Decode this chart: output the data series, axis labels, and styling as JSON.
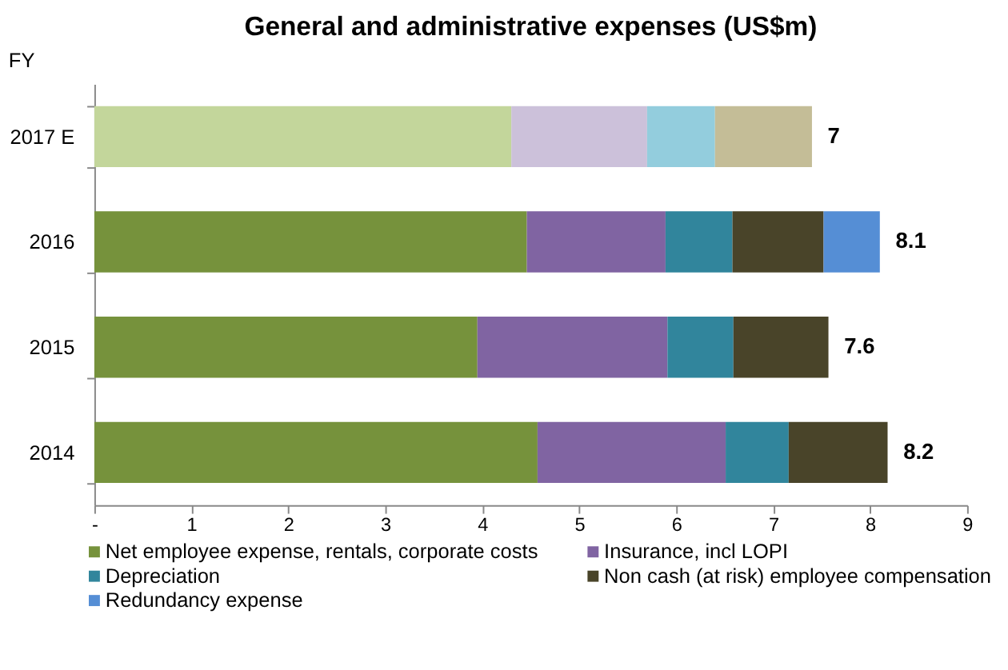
{
  "chart_data": {
    "type": "bar",
    "orientation": "horizontal",
    "stacked": true,
    "title": "General and administrative expenses (US$m)",
    "ylabel": "FY",
    "categories": [
      "2017 E",
      "2016",
      "2015",
      "2014"
    ],
    "series": [
      {
        "name": "Net employee expense, rentals, corporate costs",
        "color": "#76923c",
        "colors": [
          "#c3d69b",
          "#76923c",
          "#76923c",
          "#76923c"
        ],
        "values": [
          4.3,
          4.46,
          3.95,
          4.57
        ]
      },
      {
        "name": "Insurance, incl LOPI",
        "color": "#8064a2",
        "colors": [
          "#ccc1da",
          "#8064a2",
          "#8064a2",
          "#8064a2"
        ],
        "values": [
          1.4,
          1.43,
          1.96,
          1.94
        ]
      },
      {
        "name": "Depreciation",
        "color": "#31859c",
        "colors": [
          "#93cddd",
          "#31859c",
          "#31859c",
          "#31859c"
        ],
        "values": [
          0.7,
          0.69,
          0.68,
          0.65
        ]
      },
      {
        "name": "Non cash (at risk) employee compensation",
        "color": "#494429",
        "colors": [
          "#c4bd97",
          "#494429",
          "#494429",
          "#494429"
        ],
        "values": [
          1.0,
          0.94,
          0.98,
          1.02
        ]
      },
      {
        "name": "Redundancy expense",
        "color": "#558ed5",
        "colors": [
          "#558ed5",
          "#558ed5",
          "#558ed5",
          "#558ed5"
        ],
        "values": [
          null,
          0.58,
          null,
          null
        ]
      }
    ],
    "totals": [
      "7",
      "8.1",
      "7.6",
      "8.2"
    ],
    "xlim": [
      0,
      9
    ],
    "xticks": [
      {
        "value": 0,
        "label": "-"
      },
      1,
      2,
      3,
      4,
      5,
      6,
      7,
      8,
      9
    ],
    "grid": false,
    "legend": "bottom"
  }
}
